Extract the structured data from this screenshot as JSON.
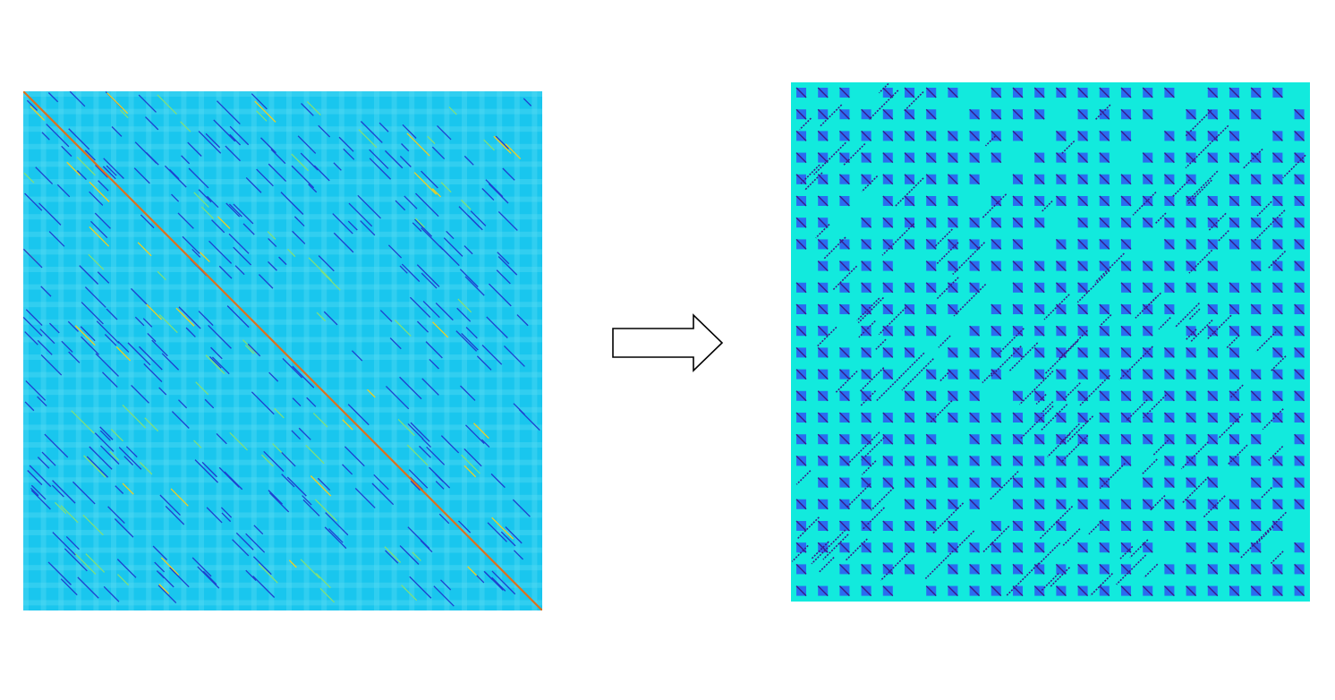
{
  "figure": {
    "left_panel": {
      "description_label": "",
      "background_color": "#19c6ee",
      "diagonal_color": "#e0701a",
      "line_color": "#1e3fd0",
      "accent_color": "#7fe07a"
    },
    "arrow": {
      "direction": "right",
      "stroke_color": "#000000",
      "fill_color": "#ffffff"
    },
    "right_panel": {
      "description_label": "",
      "background_color": "#12eadd",
      "block_color": "#2a6cf0",
      "line_color": "#3a1a8a",
      "accent_color": "#c97a2a"
    }
  }
}
